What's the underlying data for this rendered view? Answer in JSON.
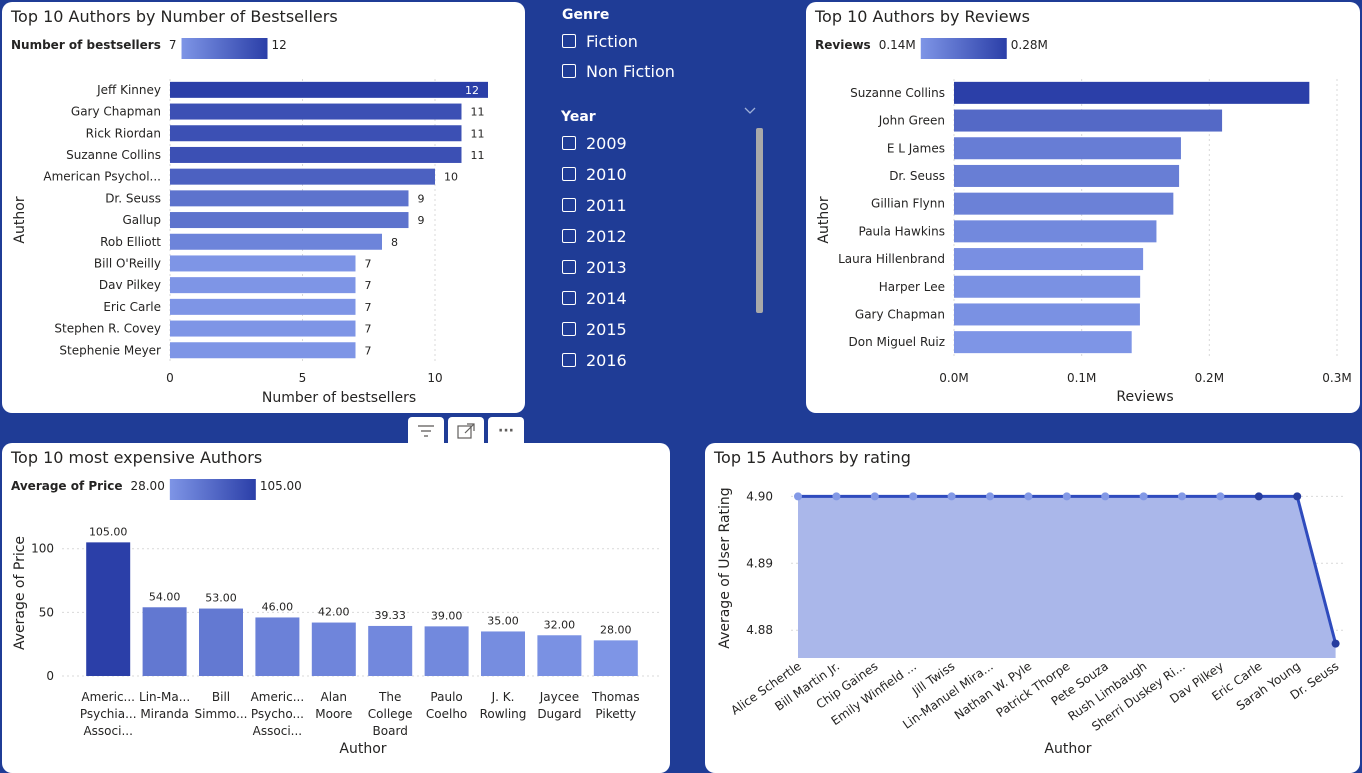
{
  "colors": {
    "dark": "#2b3fa8",
    "light": "#7e95e6",
    "page_bg": "#1f3c96",
    "area_fill": "#aab7ea",
    "grid": "#d9d9d9"
  },
  "slicer": {
    "genre_title": "Genre",
    "genres": [
      "Fiction",
      "Non Fiction"
    ],
    "year_title": "Year",
    "years": [
      "2009",
      "2010",
      "2011",
      "2012",
      "2013",
      "2014",
      "2015",
      "2016"
    ]
  },
  "visual_header": {
    "icons": [
      "filter-icon",
      "focus-mode-icon",
      "more-options-icon"
    ],
    "more_label": "···"
  },
  "chart_data": [
    {
      "id": "bestsellers",
      "type": "bar",
      "orientation": "horizontal",
      "title": "Top 10 Authors by Number of Bestsellers",
      "legend": {
        "label": "Number of bestsellers",
        "min": "7",
        "max": "12"
      },
      "categories": [
        "Jeff Kinney",
        "Gary Chapman",
        "Rick Riordan",
        "Suzanne Collins",
        "American Psychol...",
        "Dr. Seuss",
        "Gallup",
        "Rob Elliott",
        "Bill O'Reilly",
        "Dav Pilkey",
        "Eric Carle",
        "Stephen R. Covey",
        "Stephenie Meyer"
      ],
      "values": [
        12,
        11,
        11,
        11,
        10,
        9,
        9,
        8,
        7,
        7,
        7,
        7,
        7
      ],
      "data_labels": true,
      "xlabel": "Number of bestsellers",
      "ylabel": "Author",
      "xlim": [
        0,
        12
      ],
      "xticks": [
        0,
        5,
        10
      ]
    },
    {
      "id": "reviews",
      "type": "bar",
      "orientation": "horizontal",
      "title": "Top 10 Authors by Reviews",
      "legend": {
        "label": "Reviews",
        "min": "0.14M",
        "max": "0.28M"
      },
      "categories": [
        "Suzanne Collins",
        "John Green",
        "E L James",
        "Dr. Seuss",
        "Gillian Flynn",
        "Paula Hawkins",
        "Laura Hillenbrand",
        "Harper Lee",
        "Gary Chapman",
        "Don Miguel Ruiz"
      ],
      "values": [
        278329,
        209985,
        177765,
        176310,
        171813,
        158577,
        148134,
        145813,
        145644,
        139180
      ],
      "data_labels": false,
      "xlabel": "Reviews",
      "ylabel": "Author",
      "xlim": [
        0,
        300000
      ],
      "xticks": [
        0,
        100000,
        200000,
        300000
      ],
      "xtick_labels": [
        "0.0M",
        "0.1M",
        "0.2M",
        "0.3M"
      ]
    },
    {
      "id": "price",
      "type": "bar",
      "orientation": "vertical",
      "title": "Top 10 most expensive Authors",
      "legend": {
        "label": "Average of Price",
        "min": "28.00",
        "max": "105.00"
      },
      "categories": [
        [
          "Americ...",
          "Psychia...",
          "Associ..."
        ],
        [
          "Lin-Ma...",
          "Miranda"
        ],
        [
          "Bill",
          "Simmo..."
        ],
        [
          "Americ...",
          "Psycho...",
          "Associ..."
        ],
        [
          "Alan",
          "Moore"
        ],
        [
          "The",
          "College",
          "Board"
        ],
        [
          "Paulo",
          "Coelho"
        ],
        [
          "J. K.",
          "Rowling"
        ],
        [
          "Jaycee",
          "Dugard"
        ],
        [
          "Thomas",
          "Piketty"
        ]
      ],
      "values": [
        105.0,
        54.0,
        53.0,
        46.0,
        42.0,
        39.33,
        39.0,
        35.0,
        32.0,
        28.0
      ],
      "value_labels": [
        "105.00",
        "54.00",
        "53.00",
        "46.00",
        "42.00",
        "39.33",
        "39.00",
        "35.00",
        "32.00",
        "28.00"
      ],
      "xlabel": "Author",
      "ylabel": "Average of Price",
      "ylim": [
        0,
        110
      ],
      "yticks": [
        0,
        50,
        100
      ]
    },
    {
      "id": "rating",
      "type": "area",
      "title": "Top 15 Authors by rating",
      "categories": [
        "Alice Schertle",
        "Bill Martin Jr.",
        "Chip Gaines",
        "Emily Winfield ...",
        "Jill Twiss",
        "Lin-Manuel Mira...",
        "Nathan W. Pyle",
        "Patrick Thorpe",
        "Pete Souza",
        "Rush Limbaugh",
        "Sherri Duskey Ri...",
        "Dav Pilkey",
        "Eric Carle",
        "Sarah Young",
        "Dr. Seuss"
      ],
      "values": [
        4.9,
        4.9,
        4.9,
        4.9,
        4.9,
        4.9,
        4.9,
        4.9,
        4.9,
        4.9,
        4.9,
        4.9,
        4.9,
        4.9,
        4.878
      ],
      "xlabel": "Author",
      "ylabel": "Average of User Rating",
      "ylim": [
        4.876,
        4.902
      ],
      "yticks": [
        4.88,
        4.89,
        4.9
      ],
      "ytick_labels": [
        "4.88",
        "4.89",
        "4.90"
      ]
    }
  ]
}
